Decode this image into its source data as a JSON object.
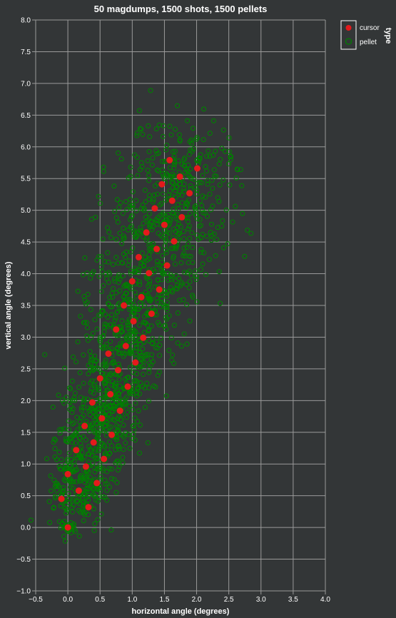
{
  "chart_data": {
    "type": "scatter",
    "title": "50 magdumps, 1500 shots, 1500 pellets",
    "xlabel": "horizontal angle (degrees)",
    "ylabel": "vertical angle (degrees)",
    "xlim": [
      -0.5,
      4.0
    ],
    "ylim": [
      -1.0,
      8.0
    ],
    "grid": true,
    "x_ticks": [
      -0.5,
      0.0,
      0.5,
      1.0,
      1.5,
      2.0,
      2.5,
      3.0,
      3.5,
      4.0
    ],
    "x_tick_labels": [
      "−0.5",
      "0.0",
      "0.5",
      "1.0",
      "1.5",
      "2.0",
      "2.5",
      "3.0",
      "3.5",
      "4.0"
    ],
    "y_ticks": [
      -1.0,
      -0.5,
      0.0,
      0.5,
      1.0,
      1.5,
      2.0,
      2.5,
      3.0,
      3.5,
      4.0,
      4.5,
      5.0,
      5.5,
      6.0,
      6.5,
      7.0,
      7.5,
      8.0
    ],
    "y_tick_labels": [
      "−1.0",
      "−0.5",
      "0.0",
      "0.5",
      "1.0",
      "1.5",
      "2.0",
      "2.5",
      "3.0",
      "3.5",
      "4.0",
      "4.5",
      "5.0",
      "5.5",
      "6.0",
      "6.5",
      "7.0",
      "7.5",
      "8.0"
    ],
    "legend": {
      "title": "type",
      "placement": "top-right",
      "entries": [
        {
          "label": "cursor",
          "color": "#e41a1c",
          "filled": true
        },
        {
          "label": "pellet",
          "color": "#008000",
          "filled": false
        }
      ]
    },
    "series": [
      {
        "name": "cursor",
        "color": "#e41a1c",
        "points": [
          [
            0.0,
            0.0
          ],
          [
            -0.1,
            0.45
          ],
          [
            0.32,
            0.32
          ],
          [
            0.17,
            0.58
          ],
          [
            0.45,
            0.7
          ],
          [
            0.0,
            0.84
          ],
          [
            0.28,
            0.96
          ],
          [
            0.56,
            1.08
          ],
          [
            0.13,
            1.22
          ],
          [
            0.4,
            1.34
          ],
          [
            0.68,
            1.46
          ],
          [
            0.26,
            1.6
          ],
          [
            0.53,
            1.72
          ],
          [
            0.81,
            1.84
          ],
          [
            0.38,
            1.97
          ],
          [
            0.66,
            2.1
          ],
          [
            0.93,
            2.22
          ],
          [
            0.5,
            2.35
          ],
          [
            0.78,
            2.48
          ],
          [
            1.05,
            2.6
          ],
          [
            0.63,
            2.74
          ],
          [
            0.9,
            2.86
          ],
          [
            1.17,
            2.99
          ],
          [
            0.75,
            3.12
          ],
          [
            1.02,
            3.25
          ],
          [
            1.3,
            3.37
          ],
          [
            0.87,
            3.5
          ],
          [
            1.14,
            3.63
          ],
          [
            1.42,
            3.75
          ],
          [
            1.0,
            3.88
          ],
          [
            1.26,
            4.01
          ],
          [
            1.54,
            4.13
          ],
          [
            1.1,
            4.26
          ],
          [
            1.38,
            4.39
          ],
          [
            1.65,
            4.51
          ],
          [
            1.22,
            4.65
          ],
          [
            1.5,
            4.77
          ],
          [
            1.77,
            4.89
          ],
          [
            1.35,
            5.03
          ],
          [
            1.62,
            5.15
          ],
          [
            1.89,
            5.27
          ],
          [
            1.46,
            5.41
          ],
          [
            1.74,
            5.53
          ],
          [
            2.01,
            5.66
          ],
          [
            1.58,
            5.79
          ]
        ]
      },
      {
        "name": "pellet",
        "color": "#008000",
        "count": 1500,
        "points_note": "1500 pellets scattered around the cursor path"
      }
    ]
  }
}
